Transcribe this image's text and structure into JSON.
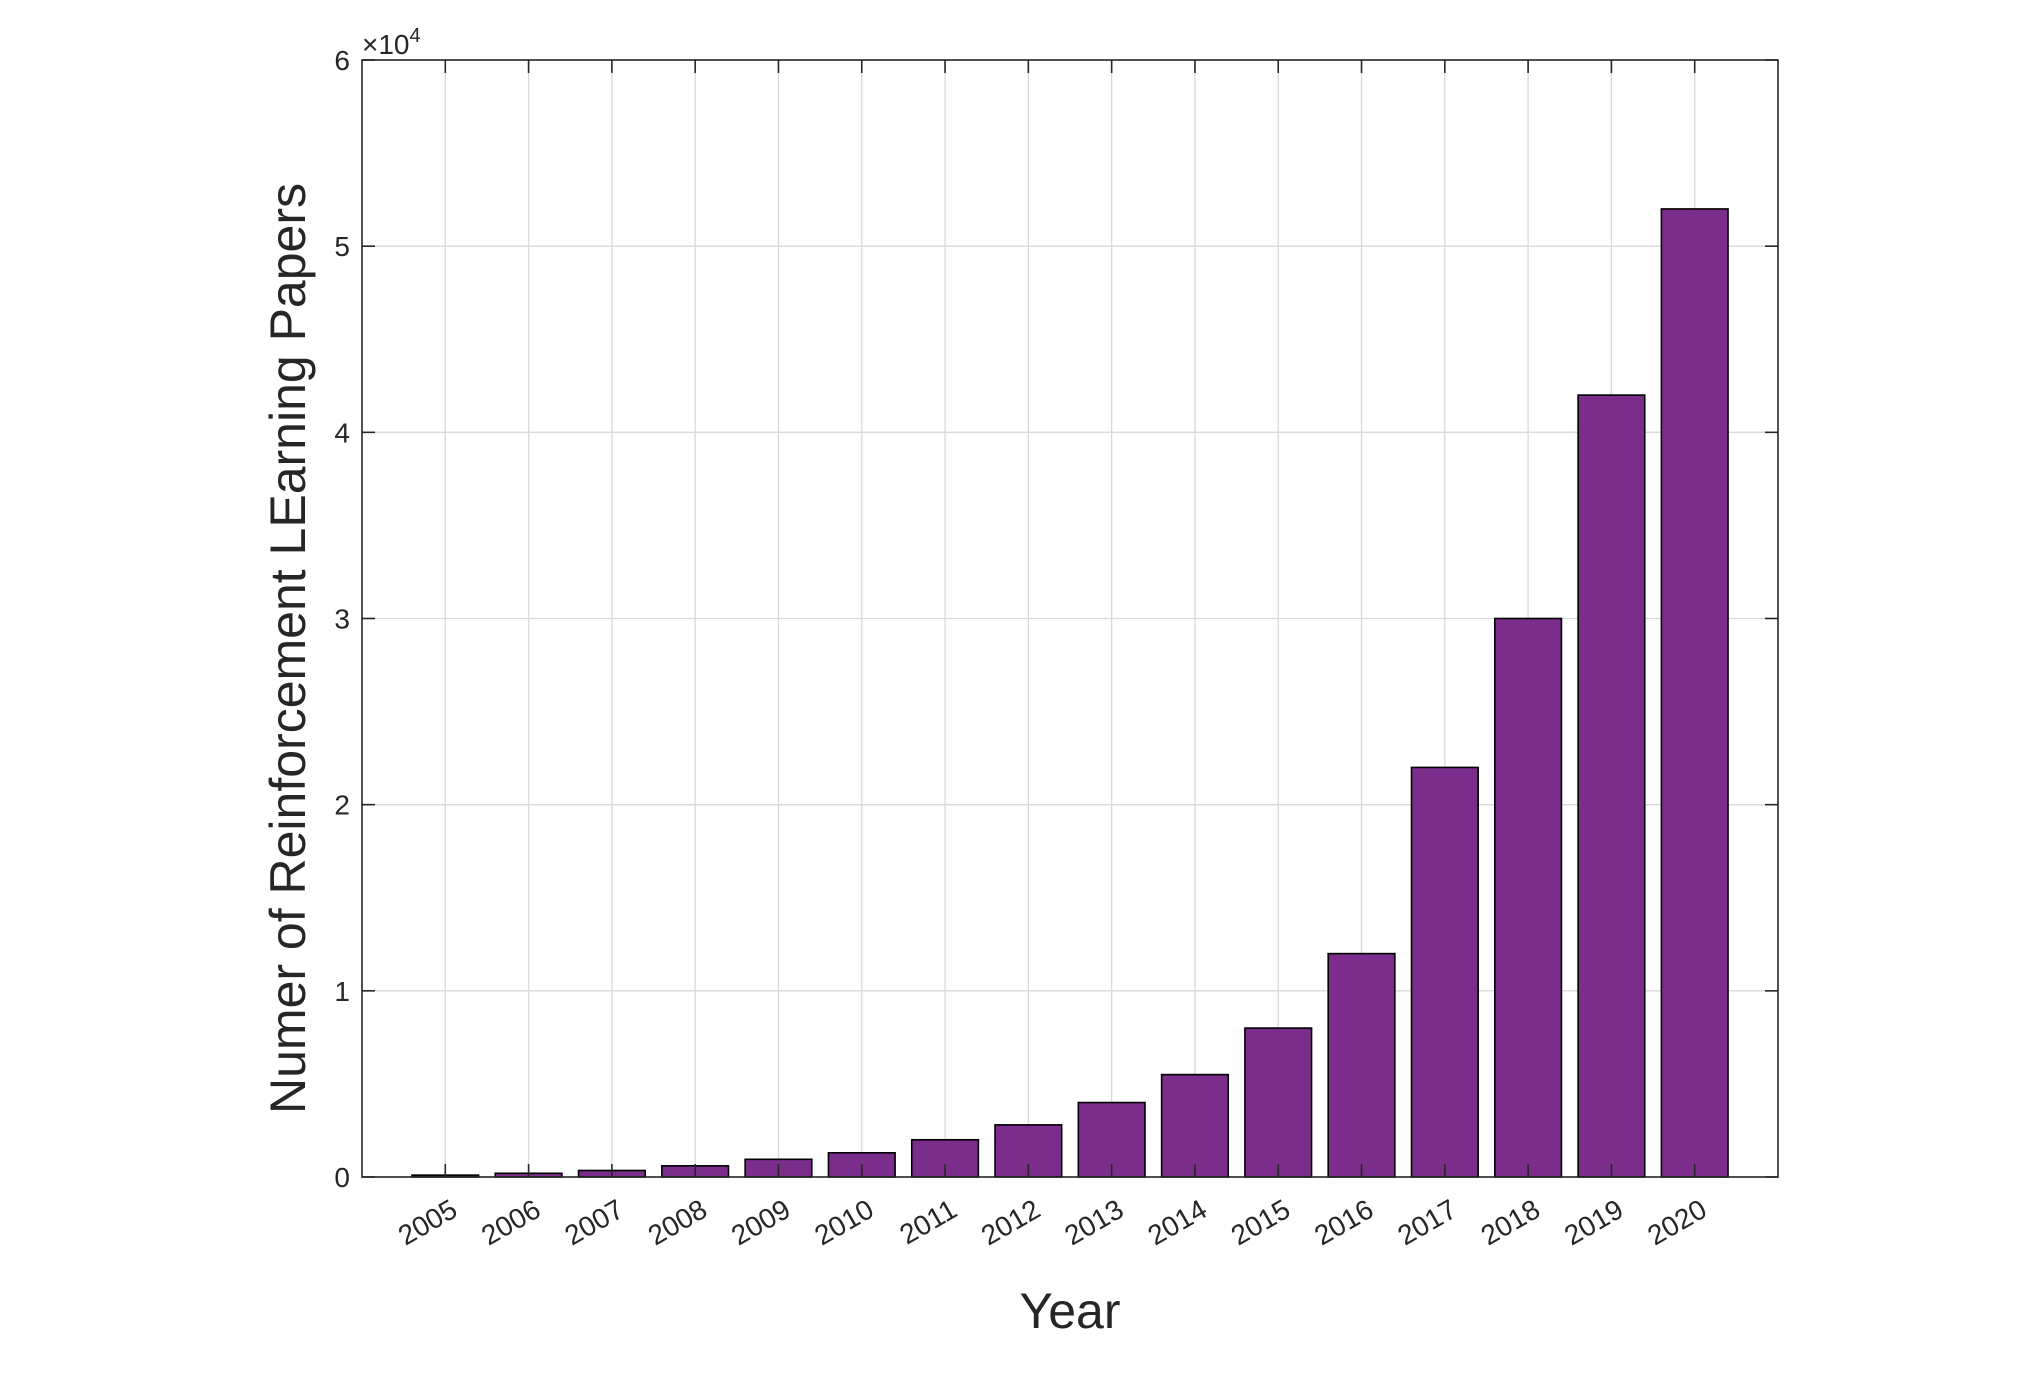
{
  "chart_data": {
    "type": "bar",
    "categories": [
      "2005",
      "2006",
      "2007",
      "2008",
      "2009",
      "2010",
      "2011",
      "2012",
      "2013",
      "2014",
      "2015",
      "2016",
      "2017",
      "2018",
      "2019",
      "2020"
    ],
    "values": [
      100,
      200,
      350,
      600,
      950,
      1300,
      2000,
      2800,
      4000,
      5500,
      8000,
      12000,
      22000,
      30000,
      42000,
      52000
    ],
    "title": "",
    "xlabel": "Year",
    "ylabel": "Numer of Reinforcement LEarning Papers",
    "ylim": [
      0,
      60000
    ],
    "y_ticks": [
      0,
      10000,
      20000,
      30000,
      40000,
      50000,
      60000
    ],
    "y_tick_labels": [
      "0",
      "1",
      "2",
      "3",
      "4",
      "5",
      "6"
    ],
    "y_exponent_base": "×10",
    "y_exponent_power": "4",
    "grid": true,
    "bar_color": "#7b2d8b",
    "x_tick_rotation_deg": -30
  }
}
